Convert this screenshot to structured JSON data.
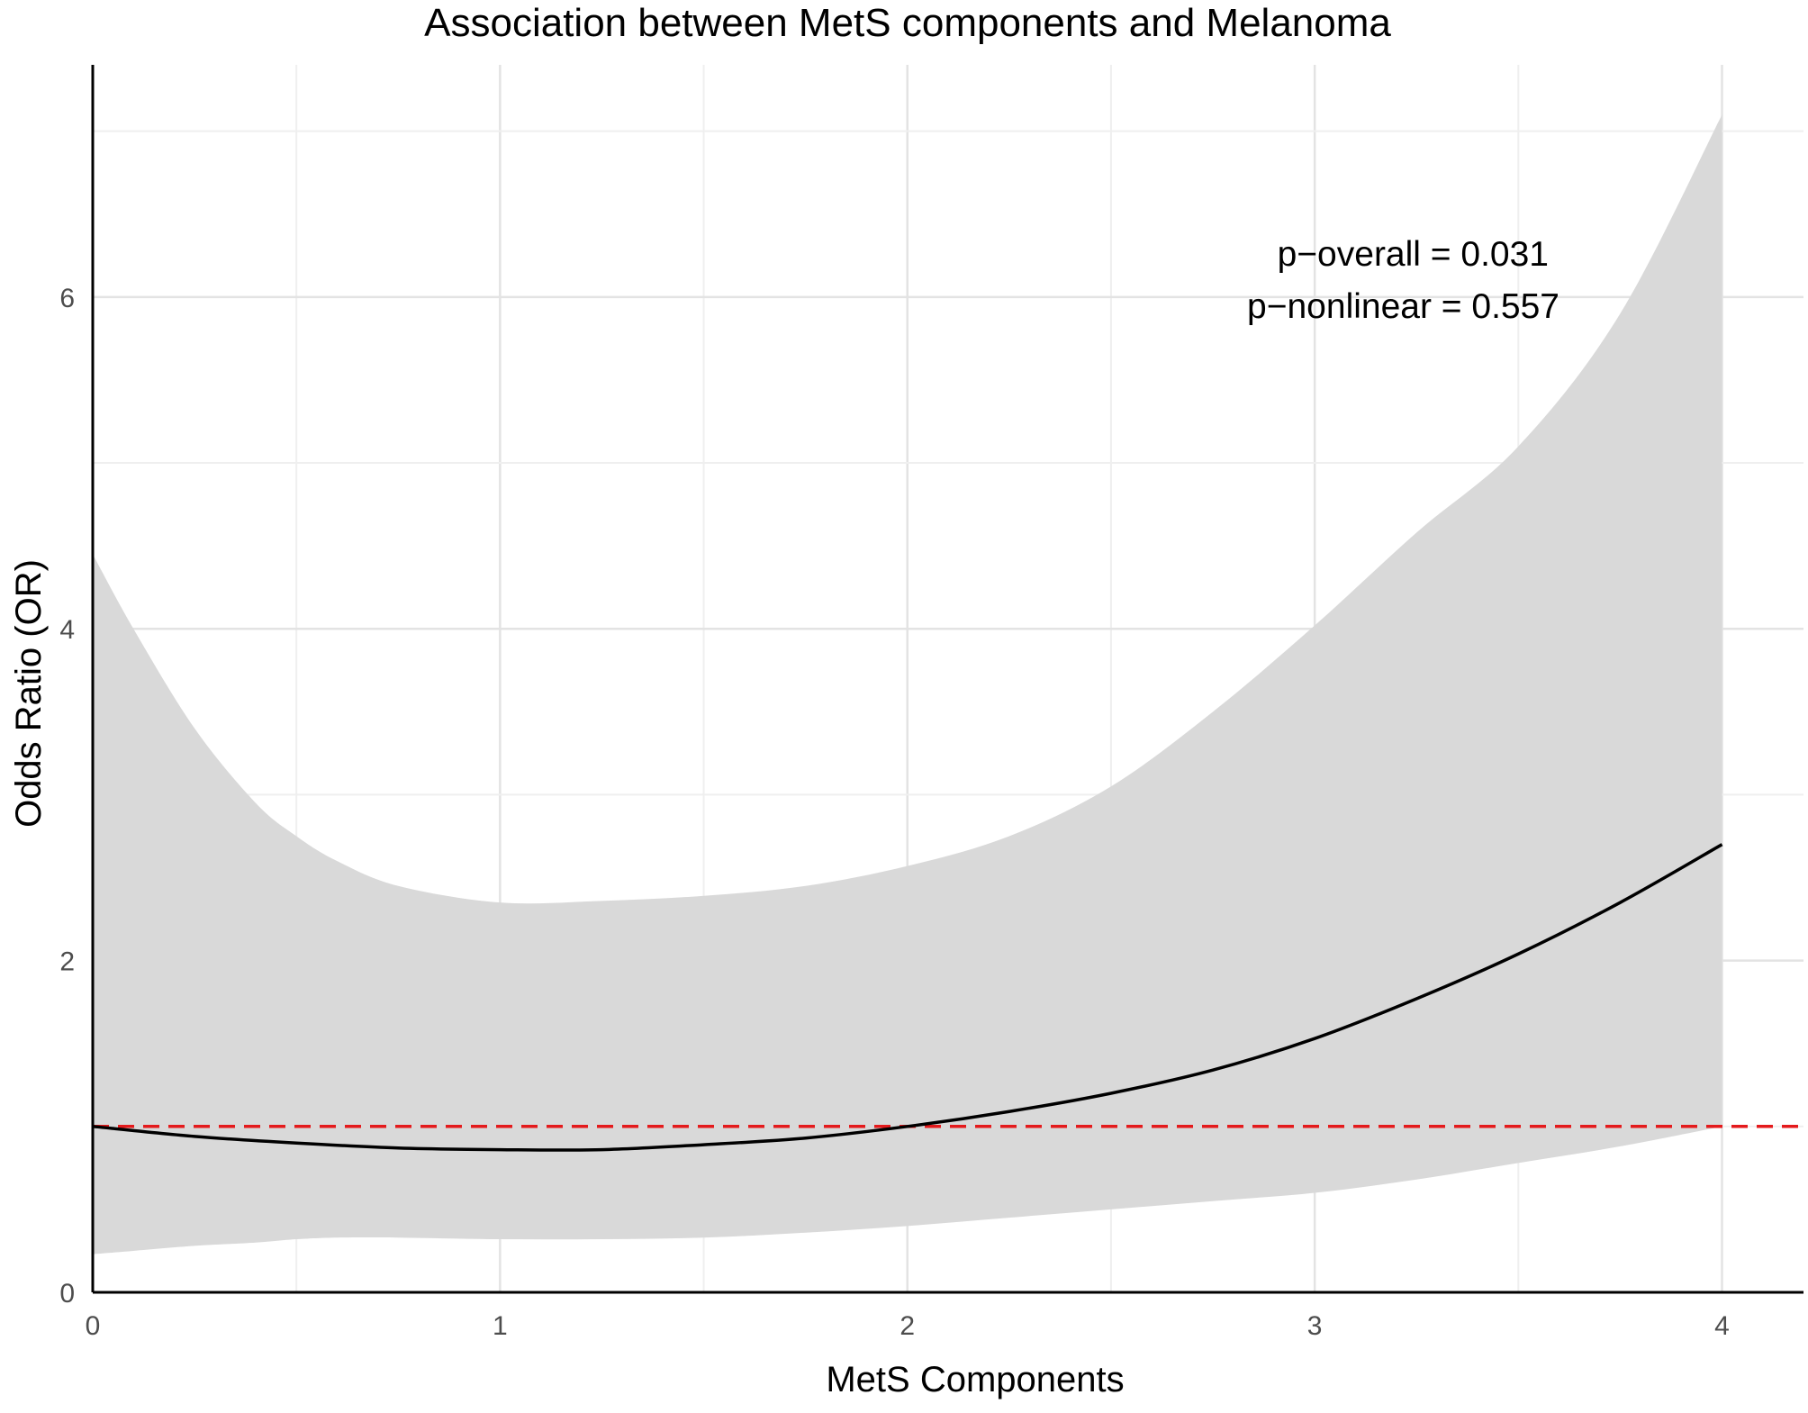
{
  "chart_data": {
    "type": "line",
    "title": "Association between MetS components and Melanoma",
    "xlabel": "MetS Components",
    "ylabel": "Odds Ratio (OR)",
    "xlim": [
      0,
      4.2
    ],
    "ylim": [
      0,
      7.4
    ],
    "x_ticks": [
      0,
      1,
      2,
      3,
      4
    ],
    "y_ticks": [
      0,
      2,
      4,
      6
    ],
    "grid": true,
    "reference_line": {
      "y": 1,
      "style": "dashed",
      "color": "#e41a1c"
    },
    "series": [
      {
        "name": "OR",
        "color": "#000000",
        "x": [
          0,
          0.25,
          0.5,
          0.75,
          1,
          1.25,
          1.5,
          1.75,
          2,
          2.25,
          2.5,
          2.75,
          3,
          3.25,
          3.5,
          3.75,
          4
        ],
        "y": [
          1.0,
          0.94,
          0.9,
          0.87,
          0.86,
          0.86,
          0.89,
          0.93,
          1.0,
          1.09,
          1.2,
          1.34,
          1.53,
          1.77,
          2.04,
          2.35,
          2.7
        ]
      }
    ],
    "confidence_band": {
      "color": "#d9d9d9",
      "x": [
        0,
        0.1,
        0.25,
        0.4,
        0.5,
        0.6,
        0.75,
        1,
        1.25,
        1.5,
        1.75,
        2,
        2.25,
        2.5,
        2.75,
        3,
        3.25,
        3.5,
        3.75,
        4
      ],
      "lower": [
        0.23,
        0.25,
        0.28,
        0.3,
        0.32,
        0.33,
        0.33,
        0.32,
        0.32,
        0.33,
        0.36,
        0.4,
        0.45,
        0.5,
        0.55,
        0.6,
        0.68,
        0.78,
        0.88,
        1.0
      ],
      "upper": [
        4.45,
        4.0,
        3.4,
        2.95,
        2.75,
        2.6,
        2.45,
        2.35,
        2.36,
        2.39,
        2.45,
        2.57,
        2.75,
        3.05,
        3.5,
        4.02,
        4.58,
        5.1,
        5.9,
        7.1
      ]
    },
    "annotations": [
      "p−overall = 0.031",
      "p−nonlinear = 0.557"
    ]
  }
}
